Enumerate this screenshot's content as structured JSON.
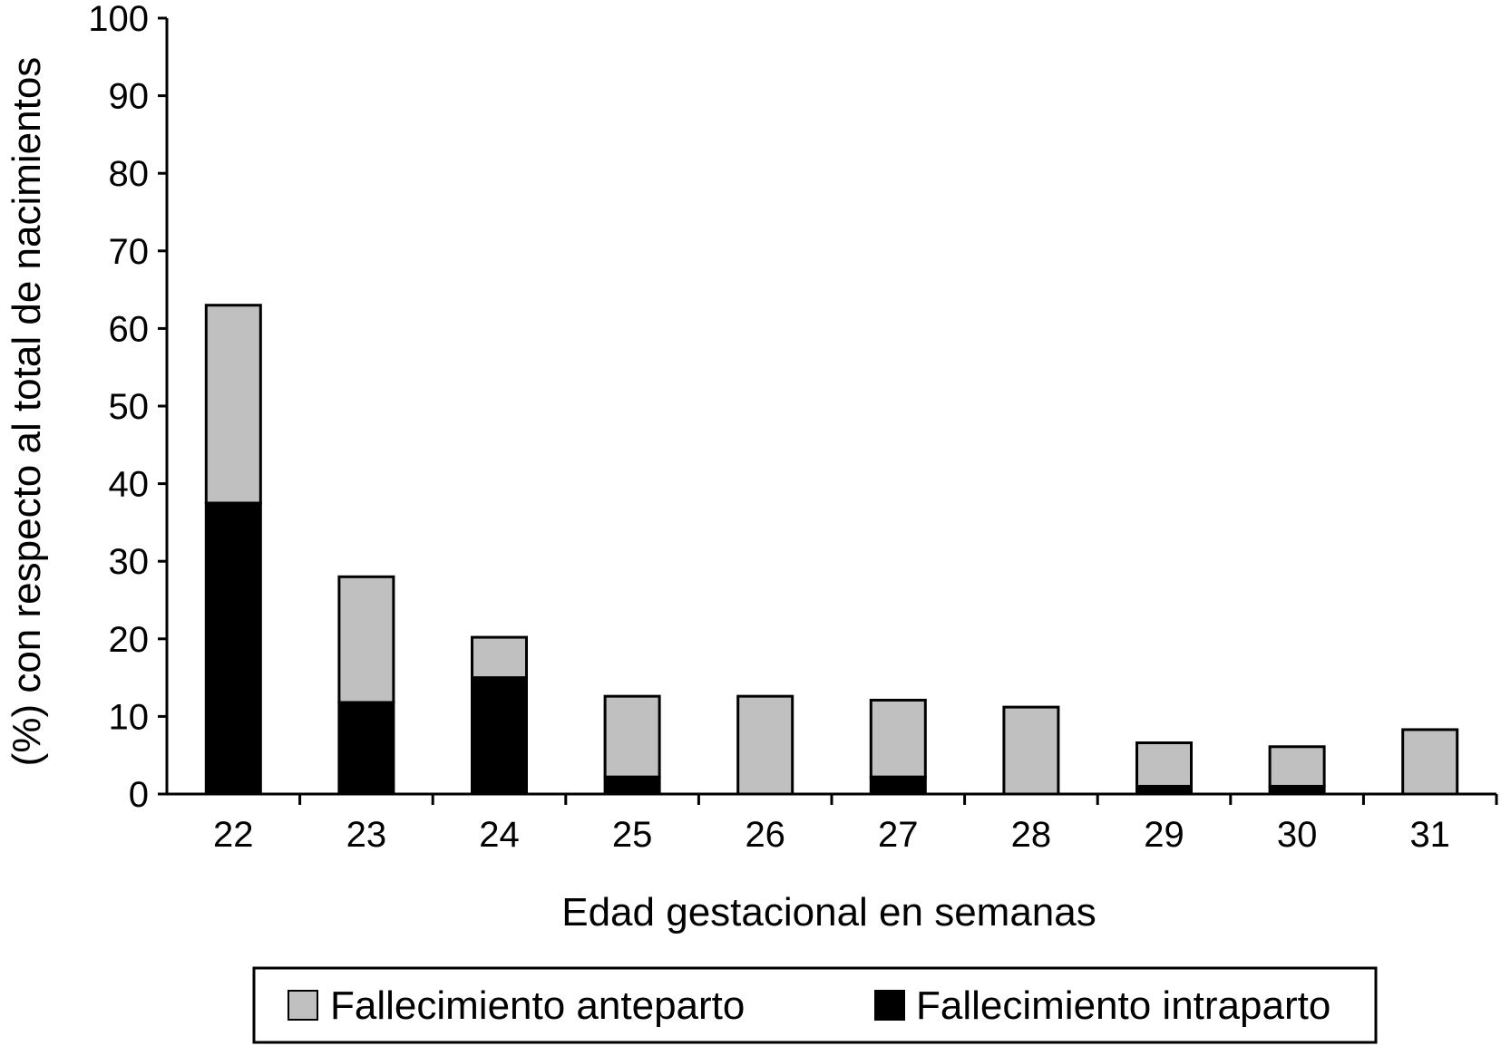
{
  "chart_data": {
    "type": "bar",
    "stacked": true,
    "categories": [
      "22",
      "23",
      "24",
      "25",
      "26",
      "27",
      "28",
      "29",
      "30",
      "31"
    ],
    "series": [
      {
        "name": "Fallecimiento intraparto",
        "color": "#000000",
        "values": [
          37.5,
          11.8,
          15.0,
          2.2,
          0,
          2.2,
          0,
          1.0,
          1.0,
          0
        ]
      },
      {
        "name": "Fallecimiento anteparto",
        "color": "#c0c0c0",
        "values": [
          25.5,
          16.2,
          5.2,
          10.4,
          12.6,
          9.9,
          11.2,
          5.6,
          5.1,
          8.3
        ]
      }
    ],
    "xlabel": "Edad gestacional en semanas",
    "ylabel": "(%) con respecto al total de nacimientos",
    "ylim": [
      0,
      100
    ],
    "yticks": [
      "0",
      "10",
      "20",
      "30",
      "40",
      "50",
      "60",
      "70",
      "80",
      "90",
      "100"
    ],
    "grid": false,
    "legend": {
      "position": "bottom",
      "items": [
        "Fallecimiento anteparto",
        "Fallecimiento intraparto"
      ]
    }
  }
}
